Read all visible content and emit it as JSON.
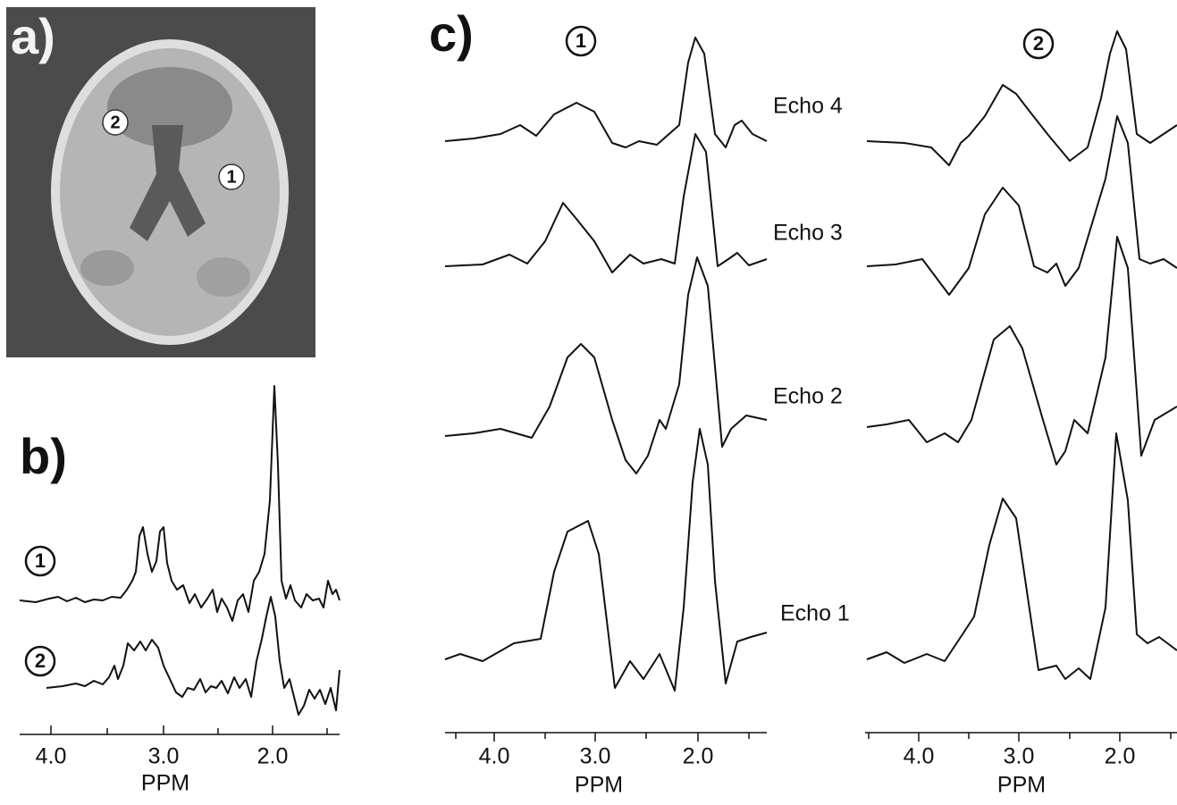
{
  "panel_a": {
    "label": "a)",
    "markers": [
      "2",
      "1"
    ]
  },
  "panel_b": {
    "label": "b)",
    "traces": [
      "1",
      "2"
    ],
    "axis": {
      "ticks": [
        "4.0",
        "3.0",
        "2.0"
      ],
      "title": "PPM"
    }
  },
  "panel_c": {
    "label": "c)",
    "columns": [
      "1",
      "2"
    ],
    "echoes": [
      "Echo 4",
      "Echo 3",
      "Echo 2",
      "Echo 1"
    ],
    "axes": [
      {
        "ticks": [
          "4.0",
          "3.0",
          "2.0"
        ],
        "title": "PPM"
      },
      {
        "ticks": [
          "4.0",
          "3.0",
          "2.0"
        ],
        "title": "PPM"
      }
    ]
  }
}
